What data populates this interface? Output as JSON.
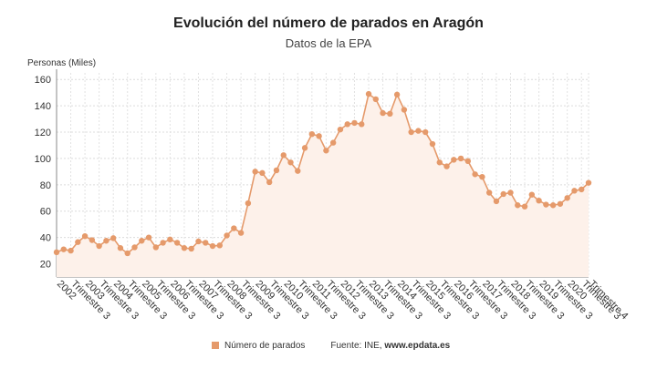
{
  "chart_data": {
    "type": "area",
    "title": "Evolución del número de parados en Aragón",
    "subtitle": "Datos de la EPA",
    "ylabel": "Personas (Miles)",
    "xlabel": "",
    "ylim": [
      10,
      165
    ],
    "yticks": [
      20,
      40,
      60,
      80,
      100,
      120,
      140,
      160
    ],
    "grid": true,
    "legend_position": "bottom",
    "series": [
      {
        "name": "Número de parados",
        "color": "#e59a6b",
        "fill": "#fdf1ea",
        "values": [
          28.8,
          31,
          30,
          36.5,
          41,
          38,
          33.5,
          37.5,
          39.5,
          32,
          28,
          32.5,
          37.5,
          40,
          32.5,
          36,
          38.5,
          36,
          32,
          31.5,
          37,
          36,
          33.5,
          34,
          41.5,
          47,
          43.5,
          66,
          90,
          89,
          82,
          91,
          102.5,
          97,
          90.5,
          108,
          118.5,
          117,
          106,
          112,
          122,
          126,
          127,
          126,
          149,
          145,
          134.5,
          134,
          148.5,
          137,
          120,
          121,
          120,
          111,
          97,
          94,
          99,
          100,
          98,
          88,
          86,
          74,
          67.5,
          73,
          74,
          64.5,
          63.5,
          72.5,
          68,
          65,
          64.5,
          65.5,
          70,
          75.5,
          76.5,
          81.5
        ]
      }
    ],
    "x_tick_labels": [
      "2002",
      "Trimestre 3",
      "2003",
      "Trimestre 3",
      "2004",
      "Trimestre 3",
      "2005",
      "Trimestre 3",
      "2006",
      "Trimestre 3",
      "2007",
      "Trimestre 3",
      "2008",
      "Trimestre 3",
      "2009",
      "Trimestre 3",
      "2010",
      "Trimestre 3",
      "2011",
      "Trimestre 3",
      "2012",
      "Trimestre 3",
      "2013",
      "Trimestre 3",
      "2014",
      "Trimestre 3",
      "2015",
      "Trimestre 3",
      "2016",
      "Trimestre 3",
      "2017",
      "Trimestre 3",
      "2018",
      "Trimestre 3",
      "2019",
      "Trimestre 3",
      "2020",
      "Trimestre 3",
      "Trimestre 4"
    ]
  },
  "legend": {
    "series_label": "Número de parados",
    "source_prefix": "Fuente: INE, ",
    "source_site": "www.epdata.es"
  }
}
